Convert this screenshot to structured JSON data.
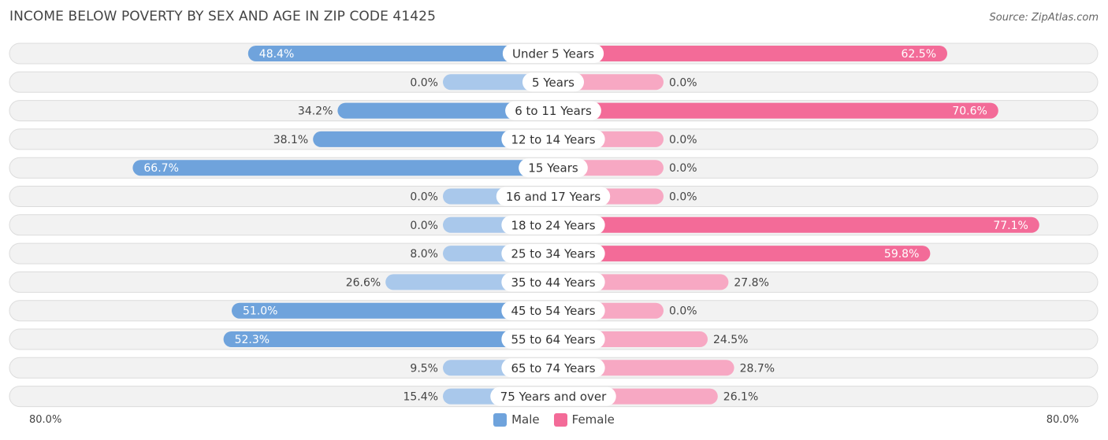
{
  "title": "INCOME BELOW POVERTY BY SEX AND AGE IN ZIP CODE 41425",
  "source": "Source: ZipAtlas.com",
  "axis": {
    "left_label": "80.0%",
    "right_label": "80.0%"
  },
  "legend": {
    "male": "Male",
    "female": "Female"
  },
  "colors": {
    "male_strong": "#6fa3dc",
    "male_light": "#a9c8eb",
    "female_strong": "#f36b98",
    "female_light": "#f7a8c3"
  },
  "chart_data": {
    "type": "bar",
    "orientation": "horizontal-diverging",
    "xlim": [
      -80,
      80
    ],
    "categories": [
      "Under 5 Years",
      "5 Years",
      "6 to 11 Years",
      "12 to 14 Years",
      "15 Years",
      "16 and 17 Years",
      "18 to 24 Years",
      "25 to 34 Years",
      "35 to 44 Years",
      "45 to 54 Years",
      "55 to 64 Years",
      "65 to 74 Years",
      "75 Years and over"
    ],
    "series": [
      {
        "name": "Male",
        "values": [
          48.4,
          0.0,
          34.2,
          38.1,
          66.7,
          0.0,
          0.0,
          8.0,
          26.6,
          51.0,
          52.3,
          9.5,
          15.4
        ]
      },
      {
        "name": "Female",
        "values": [
          62.5,
          0.0,
          70.6,
          0.0,
          0.0,
          0.0,
          77.1,
          59.8,
          27.8,
          0.0,
          24.5,
          28.7,
          26.1
        ]
      }
    ],
    "value_labels": {
      "male": [
        "48.4%",
        "0.0%",
        "34.2%",
        "38.1%",
        "66.7%",
        "0.0%",
        "0.0%",
        "8.0%",
        "26.6%",
        "51.0%",
        "52.3%",
        "9.5%",
        "15.4%"
      ],
      "female": [
        "62.5%",
        "0.0%",
        "70.6%",
        "0.0%",
        "0.0%",
        "0.0%",
        "77.1%",
        "59.8%",
        "27.8%",
        "0.0%",
        "24.5%",
        "28.7%",
        "26.1%"
      ]
    }
  }
}
